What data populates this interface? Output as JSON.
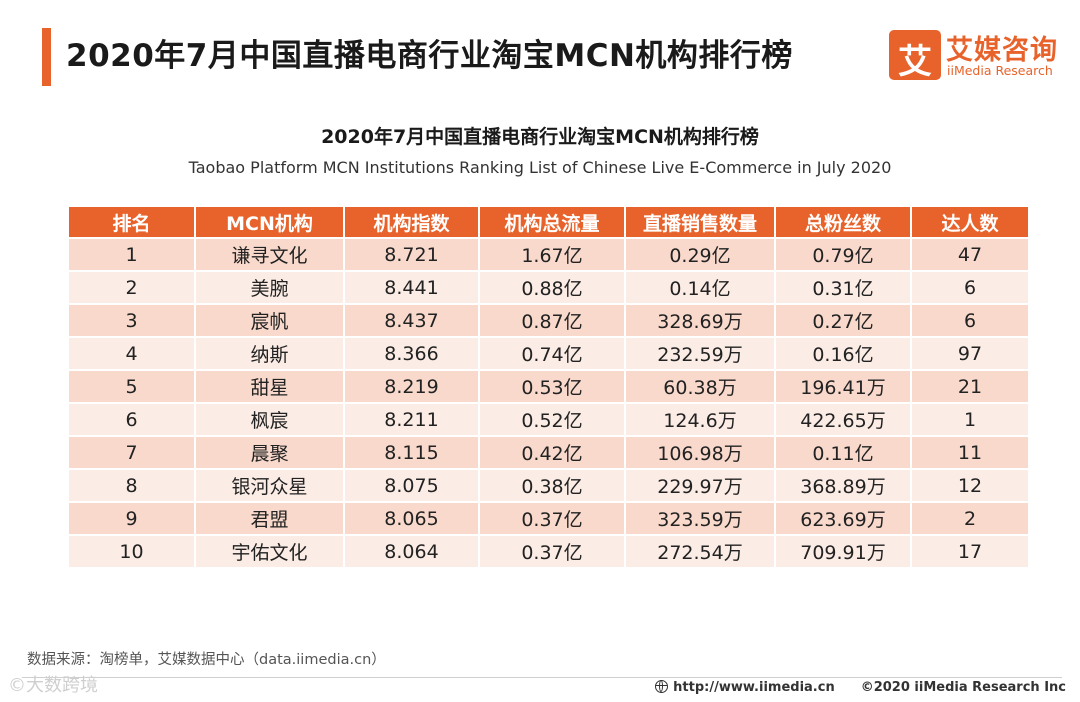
{
  "header": {
    "title": "2020年7月中国直播电商行业淘宝MCN机构排行榜",
    "accent_color": "#e8632b"
  },
  "logo": {
    "mark": "艾",
    "name_cn": "艾媒咨询",
    "name_en": "iiMedia Research"
  },
  "chart": {
    "title": "2020年7月中国直播电商行业淘宝MCN机构排行榜",
    "subtitle": "Taobao Platform MCN Institutions Ranking List of Chinese Live E-Commerce in July 2020"
  },
  "table": {
    "headers": [
      "排名",
      "MCN机构",
      "机构指数",
      "机构总流量",
      "直播销售数量",
      "总粉丝数",
      "达人数"
    ],
    "rows": [
      [
        "1",
        "谦寻文化",
        "8.721",
        "1.67亿",
        "0.29亿",
        "0.79亿",
        "47"
      ],
      [
        "2",
        "美腕",
        "8.441",
        "0.88亿",
        "0.14亿",
        "0.31亿",
        "6"
      ],
      [
        "3",
        "宸帆",
        "8.437",
        "0.87亿",
        "328.69万",
        "0.27亿",
        "6"
      ],
      [
        "4",
        "纳斯",
        "8.366",
        "0.74亿",
        "232.59万",
        "0.16亿",
        "97"
      ],
      [
        "5",
        "甜星",
        "8.219",
        "0.53亿",
        "60.38万",
        "196.41万",
        "21"
      ],
      [
        "6",
        "枫宸",
        "8.211",
        "0.52亿",
        "124.6万",
        "422.65万",
        "1"
      ],
      [
        "7",
        "晨聚",
        "8.115",
        "0.42亿",
        "106.98万",
        "0.11亿",
        "11"
      ],
      [
        "8",
        "银河众星",
        "8.075",
        "0.38亿",
        "229.97万",
        "368.89万",
        "12"
      ],
      [
        "9",
        "君盟",
        "8.065",
        "0.37亿",
        "323.59万",
        "623.69万",
        "2"
      ],
      [
        "10",
        "宇佑文化",
        "8.064",
        "0.37亿",
        "272.54万",
        "709.91万",
        "17"
      ]
    ]
  },
  "footer": {
    "source": "数据来源：淘榜单，艾媒数据中心（data.iimedia.cn）",
    "watermark": "©大数跨境",
    "url": "http://www.iimedia.cn",
    "copyright": "©2020  iiMedia Research  Inc"
  }
}
